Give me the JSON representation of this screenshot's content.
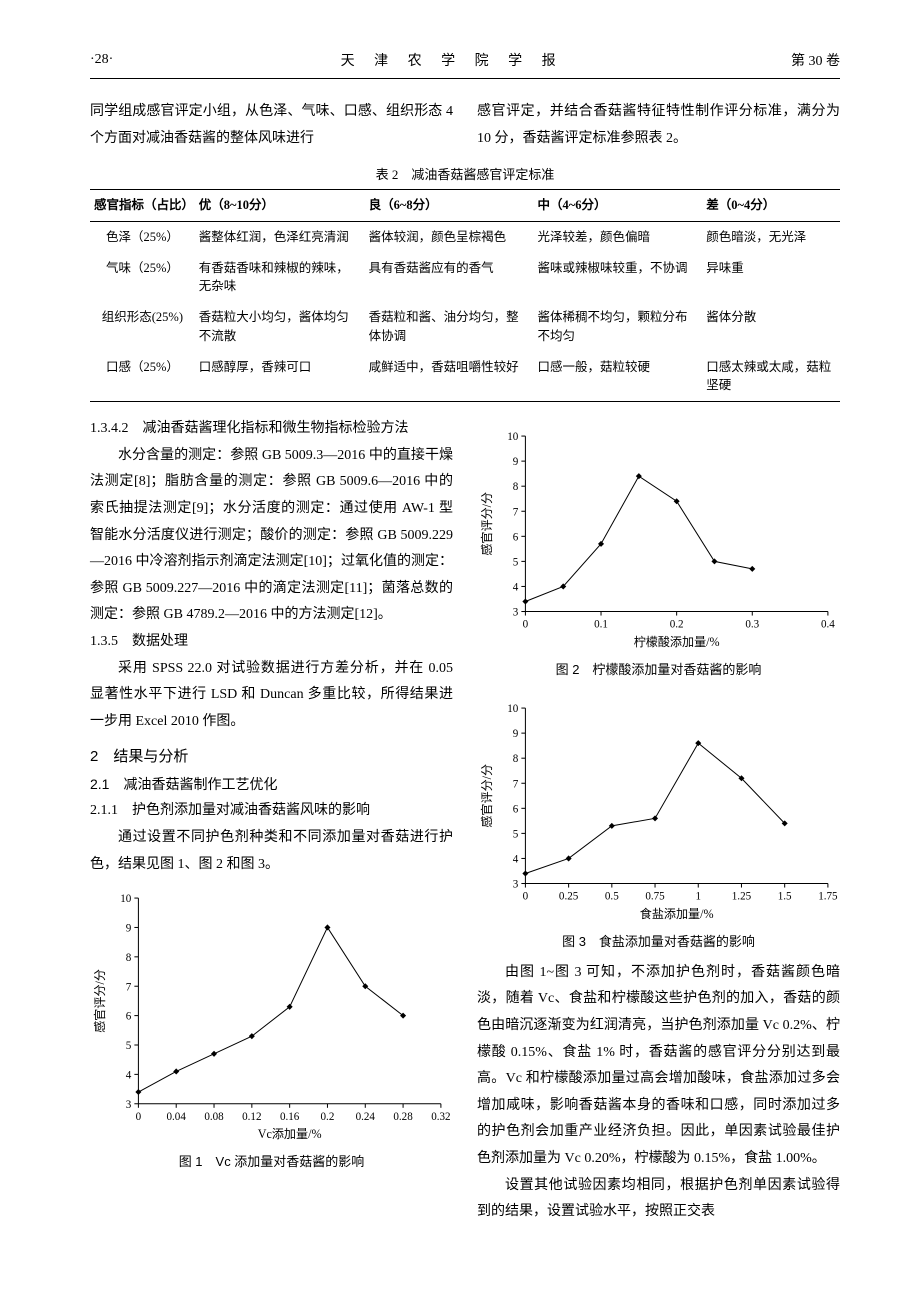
{
  "header": {
    "page_num": "·28·",
    "journal": "天 津 农 学 院 学 报",
    "volume": "第 30 卷"
  },
  "intro_left": "同学组成感官评定小组，从色泽、气味、口感、组织形态 4 个方面对减油香菇酱的整体风味进行",
  "intro_right": "感官评定，并结合香菇酱特征特性制作评分标准，满分为 10 分，香菇酱评定标准参照表 2。",
  "table2": {
    "caption": "表 2　减油香菇酱感官评定标准",
    "columns": [
      "感官指标（占比）",
      "优（8~10分）",
      "良（6~8分）",
      "中（4~6分）",
      "差（0~4分）"
    ],
    "rows": [
      [
        "色泽（25%）",
        "酱整体红润，色泽红亮清润",
        "酱体较润，颜色呈棕褐色",
        "光泽较差，颜色偏暗",
        "颜色暗淡，无光泽"
      ],
      [
        "气味（25%）",
        "有香菇香味和辣椒的辣味，无杂味",
        "具有香菇酱应有的香气",
        "酱味或辣椒味较重，不协调",
        "异味重"
      ],
      [
        "组织形态(25%)",
        "香菇粒大小均匀，酱体均匀不流散",
        "香菇粒和酱、油分均匀，整体协调",
        "酱体稀稠不均匀，颗粒分布不均匀",
        "酱体分散"
      ],
      [
        "口感（25%）",
        "口感醇厚，香辣可口",
        "咸鲜适中，香菇咀嚼性较好",
        "口感一般，菇粒较硬",
        "口感太辣或太咸，菇粒坚硬"
      ]
    ]
  },
  "sec1342": {
    "heading": "1.3.4.2　减油香菇酱理化指标和微生物指标检验方法",
    "body": "水分含量的测定：参照 GB 5009.3—2016 中的直接干燥法测定[8]；脂肪含量的测定：参照 GB 5009.6—2016 中的索氏抽提法测定[9]；水分活度的测定：通过使用 AW-1 型智能水分活度仪进行测定；酸价的测定：参照 GB 5009.229—2016 中冷溶剂指示剂滴定法测定[10]；过氧化值的测定：参照 GB 5009.227—2016 中的滴定法测定[11]；菌落总数的测定：参照 GB 4789.2—2016 中的方法测定[12]。"
  },
  "sec135": {
    "heading": "1.3.5　数据处理",
    "body": "采用 SPSS 22.0 对试验数据进行方差分析，并在 0.05 显著性水平下进行 LSD 和 Duncan 多重比较，所得结果进一步用 Excel 2010 作图。"
  },
  "sec2": "2　结果与分析",
  "sec21": "2.1　减油香菇酱制作工艺优化",
  "sec211": {
    "heading": "2.1.1　护色剂添加量对减油香菇酱风味的影响",
    "body": "通过设置不同护色剂种类和不同添加量对香菇进行护色，结果见图 1、图 2 和图 3。"
  },
  "fig1": {
    "type": "line",
    "caption": "图 1　Vc 添加量对香菇酱的影响",
    "xlabel": "Vc添加量/%",
    "ylabel": "感官评分/分",
    "xlim": [
      0,
      0.32
    ],
    "ylim": [
      3,
      10
    ],
    "xticks": [
      0,
      0.04,
      0.08,
      0.12,
      0.16,
      0.2,
      0.24,
      0.28,
      0.32
    ],
    "yticks": [
      3,
      4,
      5,
      6,
      7,
      8,
      9,
      10
    ],
    "x": [
      0,
      0.04,
      0.08,
      0.12,
      0.16,
      0.2,
      0.24,
      0.28
    ],
    "y": [
      3.4,
      4.1,
      4.7,
      5.3,
      6.3,
      9.0,
      7.0,
      6.0
    ],
    "line_color": "#000000",
    "marker": "diamond",
    "marker_size": 6,
    "line_width": 1,
    "bg": "#ffffff",
    "text_fontsize": 11
  },
  "fig2": {
    "type": "line",
    "caption": "图 2　柠檬酸添加量对香菇酱的影响",
    "xlabel": "柠檬酸添加量/%",
    "ylabel": "感官评分/分",
    "xlim": [
      0,
      0.4
    ],
    "ylim": [
      3,
      10
    ],
    "xticks": [
      0,
      0.1,
      0.2,
      0.3,
      0.4
    ],
    "yticks": [
      3,
      4,
      5,
      6,
      7,
      8,
      9,
      10
    ],
    "x": [
      0,
      0.05,
      0.1,
      0.15,
      0.2,
      0.25,
      0.3
    ],
    "y": [
      3.4,
      4.0,
      5.7,
      8.4,
      7.4,
      5.0,
      4.7
    ],
    "line_color": "#000000",
    "marker": "diamond",
    "marker_size": 6,
    "line_width": 1,
    "bg": "#ffffff",
    "text_fontsize": 11
  },
  "fig3": {
    "type": "line",
    "caption": "图 3　食盐添加量对香菇酱的影响",
    "xlabel": "食盐添加量/%",
    "ylabel": "感官评分/分",
    "xlim": [
      0,
      1.75
    ],
    "ylim": [
      3,
      10
    ],
    "xticks": [
      0,
      0.25,
      0.5,
      0.75,
      1.0,
      1.25,
      1.5,
      1.75
    ],
    "yticks": [
      3,
      4,
      5,
      6,
      7,
      8,
      9,
      10
    ],
    "x": [
      0,
      0.25,
      0.5,
      0.75,
      1.0,
      1.25,
      1.5
    ],
    "y": [
      3.4,
      4.0,
      5.3,
      5.6,
      8.6,
      7.2,
      5.4
    ],
    "line_color": "#000000",
    "marker": "diamond",
    "marker_size": 6,
    "line_width": 1,
    "bg": "#ffffff",
    "text_fontsize": 11
  },
  "right_para1": "由图 1~图 3 可知，不添加护色剂时，香菇酱颜色暗淡，随着 Vc、食盐和柠檬酸这些护色剂的加入，香菇的颜色由暗沉逐渐变为红润清亮，当护色剂添加量 Vc 0.2%、柠檬酸 0.15%、食盐 1% 时，香菇酱的感官评分分别达到最高。Vc 和柠檬酸添加量过高会增加酸味，食盐添加过多会增加咸味，影响香菇酱本身的香味和口感，同时添加过多的护色剂会加重产业经济负担。因此，单因素试验最佳护色剂添加量为 Vc 0.20%，柠檬酸为 0.15%，食盐 1.00%。",
  "right_para2": "设置其他试验因素均相同，根据护色剂单因素试验得到的结果，设置试验水平，按照正交表"
}
